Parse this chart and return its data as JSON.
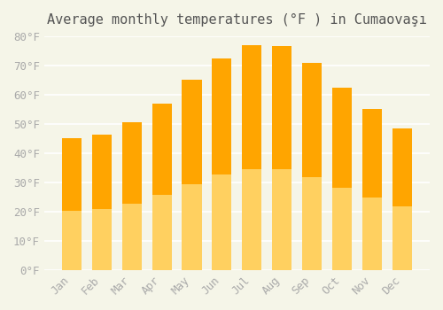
{
  "title": "Average monthly temperatures (°F ) in Cumaovaşı",
  "months": [
    "Jan",
    "Feb",
    "Mar",
    "Apr",
    "May",
    "Jun",
    "Jul",
    "Aug",
    "Sep",
    "Oct",
    "Nov",
    "Dec"
  ],
  "values": [
    45,
    46.5,
    50.5,
    57,
    65,
    72.5,
    77,
    76.5,
    71,
    62.5,
    55,
    48.5
  ],
  "bar_color_top": "#FFA500",
  "bar_color_bottom": "#FFD060",
  "background_color": "#f5f5e8",
  "plot_bg_color": "#f5f5e8",
  "grid_color": "#ffffff",
  "tick_color": "#aaaaaa",
  "title_color": "#555555",
  "ylim": [
    0,
    80
  ],
  "yticks": [
    0,
    10,
    20,
    30,
    40,
    50,
    60,
    70,
    80
  ],
  "title_fontsize": 11,
  "tick_fontsize": 9
}
